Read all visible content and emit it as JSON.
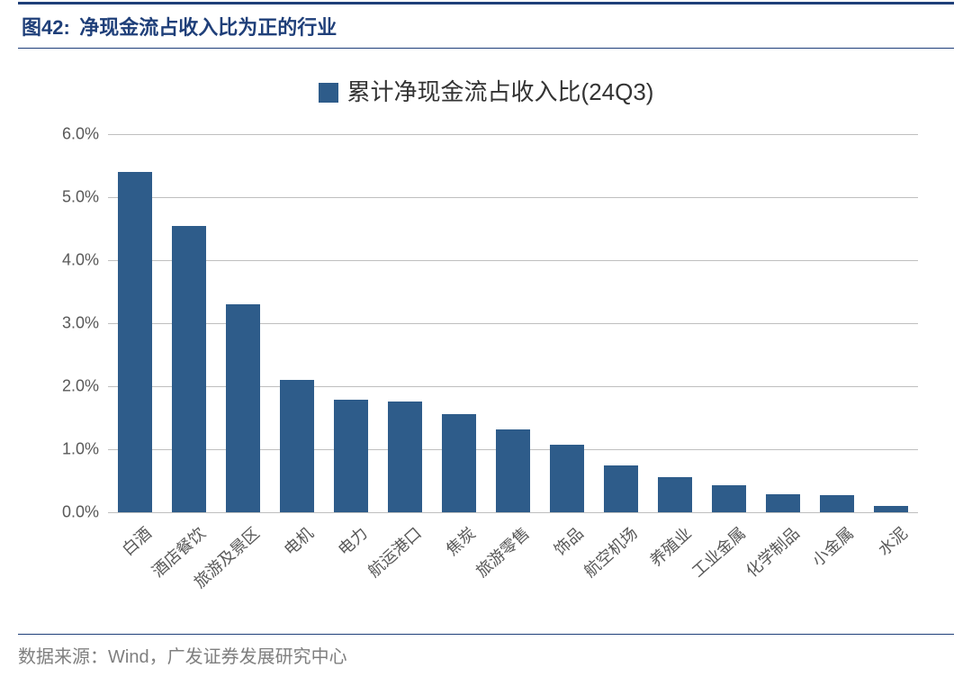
{
  "figure_label": "图42:",
  "title": "净现金流占收入比为正的行业",
  "legend_text": "累计净现金流占收入比(24Q3)",
  "source_text": "数据来源：Wind，广发证券发展研究中心",
  "chart": {
    "type": "bar",
    "bar_color": "#2e5c8a",
    "grid_color": "#bfbfbf",
    "background_color": "#ffffff",
    "label_color": "#595959",
    "title_color": "#1f3f79",
    "ylim_min": 0.0,
    "ylim_max": 6.0,
    "ytick_step": 1.0,
    "y_tick_labels": [
      "0.0%",
      "1.0%",
      "2.0%",
      "3.0%",
      "4.0%",
      "5.0%",
      "6.0%"
    ],
    "categories": [
      "白酒",
      "酒店餐饮",
      "旅游及景区",
      "电机",
      "电力",
      "航运港口",
      "焦炭",
      "旅游零售",
      "饰品",
      "航空机场",
      "养殖业",
      "工业金属",
      "化学制品",
      "小金属",
      "水泥"
    ],
    "values": [
      5.4,
      4.55,
      3.3,
      2.1,
      1.78,
      1.76,
      1.56,
      1.31,
      1.07,
      0.75,
      0.56,
      0.43,
      0.29,
      0.27,
      0.1
    ],
    "bar_width_ratio": 0.62,
    "xlabel_rotation_deg": -42,
    "axis_fontsize": 18,
    "legend_fontsize": 26,
    "title_fontsize": 22
  }
}
